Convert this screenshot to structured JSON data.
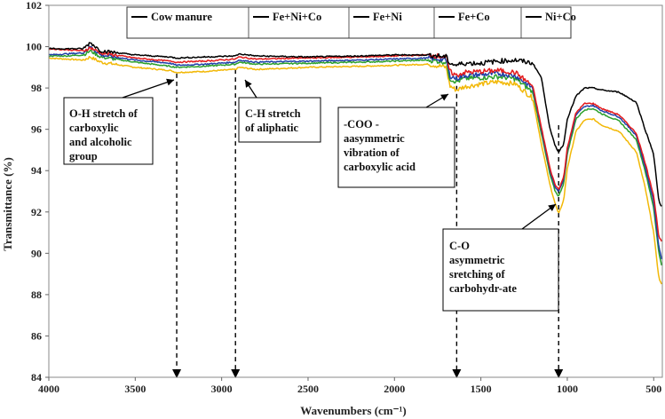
{
  "chart_data": {
    "type": "line",
    "title": "",
    "xlabel": "Wavenumbers (cm⁻¹)",
    "ylabel": "Transmittance (%)",
    "xlim": [
      4000,
      450
    ],
    "ylim": [
      84,
      102
    ],
    "x_ticks": [
      "4000",
      "3500",
      "3000",
      "2500",
      "2000",
      "1500",
      "1000",
      "500"
    ],
    "y_ticks": [
      "84",
      "86",
      "88",
      "90",
      "92",
      "94",
      "96",
      "98",
      "100",
      "102"
    ],
    "x_tick_values": [
      4000,
      3500,
      3000,
      2500,
      2000,
      1500,
      1000,
      500
    ],
    "y_tick_values": [
      84,
      86,
      88,
      90,
      92,
      94,
      96,
      98,
      100,
      102
    ],
    "legend_placement": "top",
    "series": [
      {
        "name": "Cow manure",
        "color": "#000000",
        "points": [
          [
            4000,
            99.9
          ],
          [
            3900,
            99.9
          ],
          [
            3800,
            99.9
          ],
          [
            3760,
            100.2
          ],
          [
            3700,
            99.8
          ],
          [
            3500,
            99.6
          ],
          [
            3300,
            99.5
          ],
          [
            3260,
            99.45
          ],
          [
            3100,
            99.5
          ],
          [
            2920,
            99.55
          ],
          [
            2900,
            99.65
          ],
          [
            2800,
            99.55
          ],
          [
            2500,
            99.5
          ],
          [
            2200,
            99.55
          ],
          [
            2000,
            99.6
          ],
          [
            1800,
            99.6
          ],
          [
            1700,
            99.5
          ],
          [
            1680,
            99.2
          ],
          [
            1640,
            99.1
          ],
          [
            1600,
            99.2
          ],
          [
            1500,
            99.2
          ],
          [
            1400,
            99.3
          ],
          [
            1300,
            99.35
          ],
          [
            1200,
            99.2
          ],
          [
            1150,
            98.5
          ],
          [
            1100,
            96.0
          ],
          [
            1070,
            95.2
          ],
          [
            1050,
            94.9
          ],
          [
            1020,
            95.3
          ],
          [
            1000,
            96.5
          ],
          [
            950,
            97.6
          ],
          [
            900,
            98.0
          ],
          [
            850,
            98.0
          ],
          [
            800,
            97.9
          ],
          [
            700,
            97.8
          ],
          [
            600,
            97.3
          ],
          [
            550,
            96.0
          ],
          [
            500,
            94.8
          ],
          [
            470,
            92.5
          ],
          [
            450,
            92.2
          ]
        ]
      },
      {
        "name": "Fe+Ni+Co",
        "color": "#1f3fa8",
        "points": [
          [
            4000,
            99.6
          ],
          [
            3900,
            99.65
          ],
          [
            3800,
            99.7
          ],
          [
            3760,
            100.0
          ],
          [
            3700,
            99.6
          ],
          [
            3500,
            99.35
          ],
          [
            3300,
            99.2
          ],
          [
            3260,
            99.1
          ],
          [
            3100,
            99.15
          ],
          [
            2920,
            99.25
          ],
          [
            2900,
            99.35
          ],
          [
            2800,
            99.25
          ],
          [
            2500,
            99.3
          ],
          [
            2200,
            99.35
          ],
          [
            2000,
            99.4
          ],
          [
            1800,
            99.45
          ],
          [
            1700,
            99.35
          ],
          [
            1680,
            98.6
          ],
          [
            1640,
            98.45
          ],
          [
            1600,
            98.6
          ],
          [
            1500,
            98.65
          ],
          [
            1400,
            98.7
          ],
          [
            1300,
            98.6
          ],
          [
            1200,
            98.0
          ],
          [
            1150,
            96.0
          ],
          [
            1100,
            94.0
          ],
          [
            1070,
            93.2
          ],
          [
            1050,
            93.0
          ],
          [
            1020,
            93.6
          ],
          [
            1000,
            95.0
          ],
          [
            950,
            96.7
          ],
          [
            900,
            97.1
          ],
          [
            850,
            97.15
          ],
          [
            800,
            96.9
          ],
          [
            700,
            96.6
          ],
          [
            600,
            95.7
          ],
          [
            550,
            94.2
          ],
          [
            500,
            92.5
          ],
          [
            470,
            90.3
          ],
          [
            450,
            89.6
          ]
        ]
      },
      {
        "name": "Fe+Ni",
        "color": "#e31a1c",
        "points": [
          [
            4000,
            99.9
          ],
          [
            3900,
            99.85
          ],
          [
            3800,
            99.8
          ],
          [
            3760,
            99.95
          ],
          [
            3700,
            99.7
          ],
          [
            3500,
            99.45
          ],
          [
            3300,
            99.3
          ],
          [
            3260,
            99.25
          ],
          [
            3100,
            99.3
          ],
          [
            2920,
            99.4
          ],
          [
            2900,
            99.5
          ],
          [
            2800,
            99.4
          ],
          [
            2500,
            99.45
          ],
          [
            2200,
            99.5
          ],
          [
            2000,
            99.55
          ],
          [
            1800,
            99.6
          ],
          [
            1700,
            99.5
          ],
          [
            1680,
            98.8
          ],
          [
            1640,
            98.6
          ],
          [
            1600,
            98.75
          ],
          [
            1500,
            98.8
          ],
          [
            1400,
            98.85
          ],
          [
            1300,
            98.75
          ],
          [
            1200,
            98.1
          ],
          [
            1150,
            96.1
          ],
          [
            1100,
            94.1
          ],
          [
            1070,
            93.3
          ],
          [
            1050,
            93.1
          ],
          [
            1020,
            93.7
          ],
          [
            1000,
            95.1
          ],
          [
            950,
            96.8
          ],
          [
            900,
            97.25
          ],
          [
            850,
            97.25
          ],
          [
            800,
            97.0
          ],
          [
            700,
            96.7
          ],
          [
            600,
            95.8
          ],
          [
            550,
            94.4
          ],
          [
            500,
            92.8
          ],
          [
            470,
            90.8
          ],
          [
            450,
            90.5
          ]
        ]
      },
      {
        "name": "Fe+Co",
        "color": "#2ca02c",
        "points": [
          [
            4000,
            99.55
          ],
          [
            3900,
            99.55
          ],
          [
            3800,
            99.6
          ],
          [
            3760,
            99.8
          ],
          [
            3700,
            99.5
          ],
          [
            3500,
            99.25
          ],
          [
            3300,
            99.05
          ],
          [
            3260,
            99.0
          ],
          [
            3100,
            99.05
          ],
          [
            2920,
            99.15
          ],
          [
            2900,
            99.25
          ],
          [
            2800,
            99.15
          ],
          [
            2500,
            99.2
          ],
          [
            2200,
            99.25
          ],
          [
            2000,
            99.3
          ],
          [
            1800,
            99.35
          ],
          [
            1700,
            99.25
          ],
          [
            1680,
            98.45
          ],
          [
            1640,
            98.3
          ],
          [
            1600,
            98.45
          ],
          [
            1500,
            98.5
          ],
          [
            1400,
            98.55
          ],
          [
            1300,
            98.45
          ],
          [
            1200,
            97.8
          ],
          [
            1150,
            95.8
          ],
          [
            1100,
            93.8
          ],
          [
            1070,
            93.0
          ],
          [
            1050,
            92.75
          ],
          [
            1020,
            93.4
          ],
          [
            1000,
            94.8
          ],
          [
            950,
            96.5
          ],
          [
            900,
            96.95
          ],
          [
            850,
            97.0
          ],
          [
            800,
            96.75
          ],
          [
            700,
            96.4
          ],
          [
            600,
            95.5
          ],
          [
            550,
            94.0
          ],
          [
            500,
            92.2
          ],
          [
            470,
            90.0
          ],
          [
            450,
            89.3
          ]
        ]
      },
      {
        "name": "Ni+Co",
        "color": "#f2b807",
        "points": [
          [
            4000,
            99.45
          ],
          [
            3900,
            99.4
          ],
          [
            3800,
            99.35
          ],
          [
            3760,
            99.5
          ],
          [
            3700,
            99.25
          ],
          [
            3500,
            99.0
          ],
          [
            3300,
            98.85
          ],
          [
            3260,
            98.75
          ],
          [
            3100,
            98.8
          ],
          [
            2920,
            98.9
          ],
          [
            2900,
            99.0
          ],
          [
            2800,
            98.9
          ],
          [
            2500,
            99.0
          ],
          [
            2200,
            99.05
          ],
          [
            2000,
            99.1
          ],
          [
            1800,
            99.15
          ],
          [
            1700,
            99.0
          ],
          [
            1680,
            98.1
          ],
          [
            1640,
            97.9
          ],
          [
            1600,
            98.05
          ],
          [
            1500,
            98.2
          ],
          [
            1400,
            98.3
          ],
          [
            1300,
            98.2
          ],
          [
            1200,
            97.5
          ],
          [
            1150,
            95.3
          ],
          [
            1100,
            93.3
          ],
          [
            1070,
            92.4
          ],
          [
            1050,
            91.9
          ],
          [
            1020,
            92.6
          ],
          [
            1000,
            94.1
          ],
          [
            950,
            95.9
          ],
          [
            900,
            96.45
          ],
          [
            850,
            96.5
          ],
          [
            800,
            96.2
          ],
          [
            700,
            95.9
          ],
          [
            600,
            94.9
          ],
          [
            550,
            93.2
          ],
          [
            500,
            91.0
          ],
          [
            470,
            88.8
          ],
          [
            450,
            88.4
          ]
        ]
      }
    ],
    "reference_lines": [
      {
        "x": 3260,
        "label": "O-H stretch of carboxylic and alcoholic group"
      },
      {
        "x": 2920,
        "label": "C-H stretch of aliphatic"
      },
      {
        "x": 1640,
        "label": "-COO - aasymmetric vibration of carboxylic acid"
      },
      {
        "x": 1050,
        "label": "C-O asymmetric sretching of carbohydr-ate"
      }
    ],
    "annotations": [
      {
        "lines": [
          "O-H stretch of",
          "carboxylic",
          "and alcoholic",
          "group"
        ],
        "target": [
          3260,
          98.8
        ]
      },
      {
        "lines": [
          "C-H stretch",
          "of aliphatic"
        ],
        "target": [
          2920,
          98.9
        ]
      },
      {
        "lines": [
          "-COO -",
          "aasymmetric",
          "vibration of",
          "carboxylic acid"
        ],
        "target": [
          1640,
          98.0
        ]
      },
      {
        "lines": [
          "C-O",
          "asymmetric",
          "sretching of",
          "carbohydr-ate"
        ],
        "target": [
          1050,
          91.9
        ]
      }
    ]
  }
}
